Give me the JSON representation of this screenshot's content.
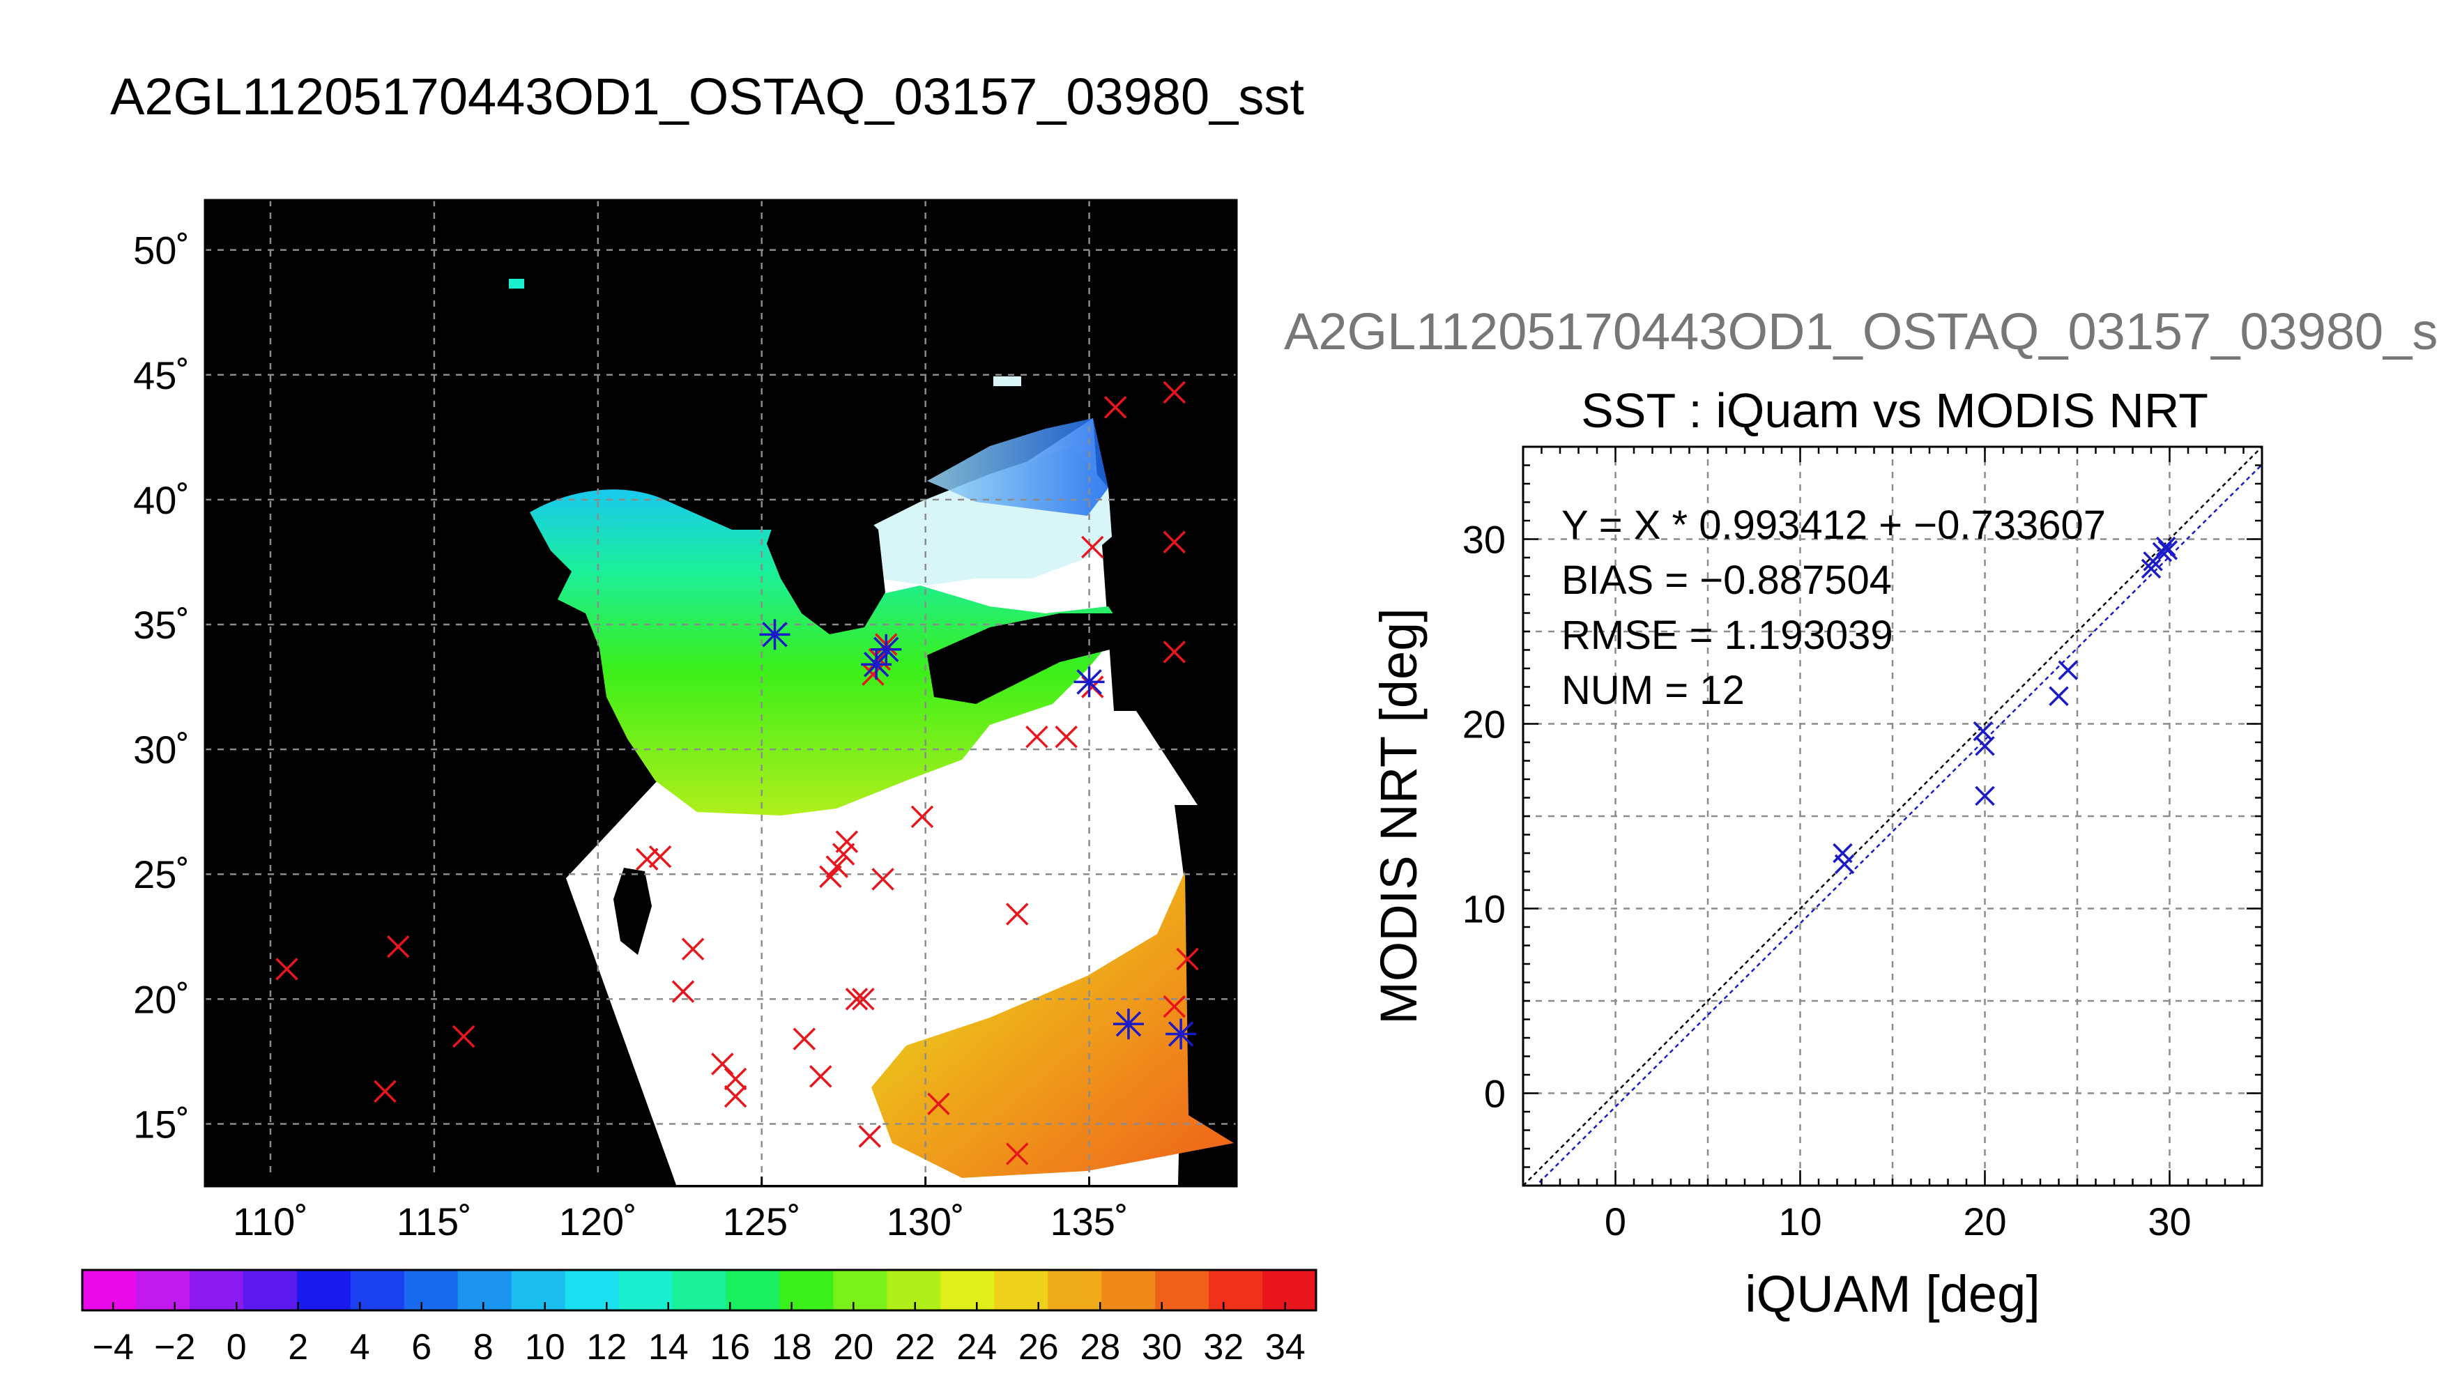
{
  "page_title": "A2GL11205170443OD1_OSTAQ_03157_03980_sst",
  "sub_title": "A2GL11205170443OD1_OSTAQ_03157_03980_s",
  "colors": {
    "land": "#000000",
    "cloud": "#ffffff",
    "grid": "#8c8c8c",
    "marker_red": "#e8161c",
    "marker_blue": "#1a1ac8",
    "fit_line": "#1a1ac8",
    "one_to_one": "#000000"
  },
  "chart_data": [
    {
      "type": "heatmap",
      "description_role": "sst-map",
      "lon_range": [
        108,
        139.5
      ],
      "lat_range": [
        12.5,
        52
      ],
      "lon_ticks": [
        110,
        115,
        120,
        125,
        130,
        135
      ],
      "lat_ticks": [
        15,
        20,
        25,
        30,
        35,
        40,
        45,
        50
      ],
      "lon_tick_labels": [
        "110˚",
        "115˚",
        "120˚",
        "125˚",
        "130˚",
        "135˚"
      ],
      "lat_tick_labels": [
        "15˚",
        "20˚",
        "25˚",
        "30˚",
        "35˚",
        "40˚",
        "45˚",
        "50˚"
      ],
      "grid": true,
      "markers_red": [
        [
          110.5,
          21.2
        ],
        [
          113.5,
          16.3
        ],
        [
          113.9,
          22.1
        ],
        [
          115.9,
          18.5
        ],
        [
          121.5,
          25.6
        ],
        [
          121.9,
          25.7
        ],
        [
          122.6,
          20.3
        ],
        [
          122.9,
          22.0
        ],
        [
          123.8,
          17.4
        ],
        [
          124.2,
          16.8
        ],
        [
          124.2,
          16.1
        ],
        [
          126.3,
          18.4
        ],
        [
          126.8,
          16.9
        ],
        [
          127.1,
          24.9
        ],
        [
          127.3,
          25.3
        ],
        [
          127.5,
          25.8
        ],
        [
          127.6,
          26.3
        ],
        [
          127.9,
          20.0
        ],
        [
          128.1,
          20.0
        ],
        [
          128.3,
          14.5
        ],
        [
          128.4,
          33.0
        ],
        [
          128.6,
          33.6
        ],
        [
          128.7,
          24.8
        ],
        [
          128.8,
          34.2
        ],
        [
          129.9,
          27.3
        ],
        [
          130.4,
          15.8
        ],
        [
          132.8,
          23.4
        ],
        [
          132.8,
          13.8
        ],
        [
          133.4,
          30.5
        ],
        [
          134.3,
          30.5
        ],
        [
          135.1,
          38.1
        ],
        [
          135.1,
          32.5
        ],
        [
          135.8,
          43.7
        ],
        [
          137.6,
          44.3
        ],
        [
          137.6,
          38.3
        ],
        [
          137.6,
          33.9
        ],
        [
          137.6,
          19.7
        ],
        [
          138.0,
          21.6
        ]
      ],
      "markers_blue": [
        [
          125.4,
          34.6
        ],
        [
          128.5,
          33.4
        ],
        [
          128.8,
          34.0
        ],
        [
          135.0,
          32.7
        ],
        [
          136.2,
          19.0
        ],
        [
          137.8,
          18.6
        ]
      ],
      "colorbar": {
        "min": -5,
        "max": 35,
        "tick_labels": [
          "−4",
          "−2",
          "0",
          "2",
          "4",
          "6",
          "8",
          "10",
          "12",
          "14",
          "16",
          "18",
          "20",
          "22",
          "24",
          "26",
          "28",
          "30",
          "32",
          "34"
        ],
        "tick_values": [
          -4,
          -2,
          0,
          2,
          4,
          6,
          8,
          10,
          12,
          14,
          16,
          18,
          20,
          22,
          24,
          26,
          28,
          30,
          32,
          34
        ],
        "colors": [
          "#e80ae8",
          "#c01aef",
          "#8a1aef",
          "#5a1aef",
          "#1a1aef",
          "#1a40ef",
          "#1a6aef",
          "#1a94ef",
          "#1abeef",
          "#1ae0ef",
          "#1aefd0",
          "#1aef9a",
          "#1aef60",
          "#3aef1a",
          "#7aef1a",
          "#b0ef1a",
          "#e0ef1a",
          "#efd01a",
          "#efaa1a",
          "#ef8a1a",
          "#ef601a",
          "#ef301a",
          "#e8161c"
        ]
      }
    },
    {
      "type": "scatter",
      "title": "SST : iQuam vs MODIS NRT",
      "xlabel": "iQUAM [deg]",
      "ylabel": "MODIS NRT [deg]",
      "xlim": [
        -5,
        35
      ],
      "ylim": [
        -5,
        35
      ],
      "xticks": [
        0,
        10,
        20,
        30
      ],
      "yticks": [
        0,
        10,
        20,
        30
      ],
      "grid": true,
      "annotations": [
        "Y = X * 0.993412 + −0.733607",
        "BIAS = −0.887504",
        "RMSE = 1.193039",
        "NUM = 12"
      ],
      "fit": {
        "slope": 0.993412,
        "intercept": -0.733607
      },
      "points": [
        [
          12.3,
          13.0
        ],
        [
          12.4,
          12.4
        ],
        [
          19.9,
          19.6
        ],
        [
          20.0,
          18.8
        ],
        [
          20.0,
          16.1
        ],
        [
          24.0,
          21.5
        ],
        [
          24.5,
          22.9
        ],
        [
          29.0,
          28.4
        ],
        [
          29.1,
          28.8
        ],
        [
          29.6,
          29.3
        ],
        [
          29.8,
          29.6
        ],
        [
          29.9,
          29.4
        ]
      ]
    }
  ]
}
